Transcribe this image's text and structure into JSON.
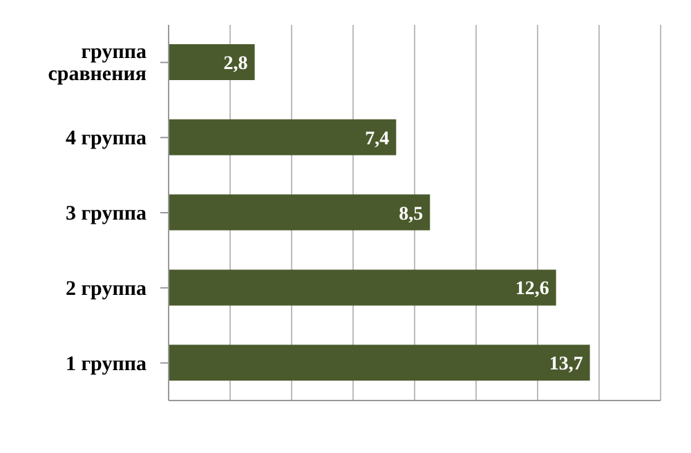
{
  "chart_data": {
    "type": "bar",
    "orientation": "horizontal",
    "categories": [
      "группа сравнения",
      "4 группа",
      "3 группа",
      "2 группа",
      "1 группа"
    ],
    "values": [
      2.8,
      7.4,
      8.5,
      12.6,
      13.7
    ],
    "value_labels": [
      "2,8",
      "7,4",
      "8,5",
      "12,6",
      "13,7"
    ],
    "color": "#4b5a2c",
    "xlim": [
      0,
      16
    ],
    "xticks": [
      {
        "value": 0,
        "label": null
      },
      {
        "value": 2,
        "label": null
      },
      {
        "value": 4,
        "label": null
      },
      {
        "value": 6,
        "label": null
      },
      {
        "value": 8,
        "label": null
      },
      {
        "value": 10,
        "label": null
      },
      {
        "value": 12,
        "label": null
      },
      {
        "value": 14,
        "label": null
      },
      {
        "value": 16,
        "label": null
      }
    ],
    "grid": "x",
    "tick_labels": "y",
    "legend": false
  }
}
